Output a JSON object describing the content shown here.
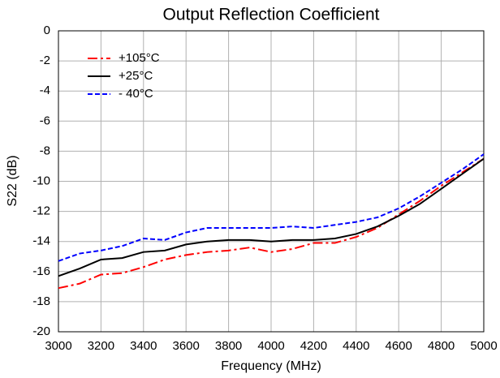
{
  "chart_data": {
    "type": "line",
    "title": "Output Reflection Coefficient",
    "xlabel": "Frequency (MHz)",
    "ylabel": "S22 (dB)",
    "x": [
      3000,
      3100,
      3200,
      3300,
      3400,
      3500,
      3600,
      3700,
      3800,
      3900,
      4000,
      4100,
      4200,
      4300,
      4400,
      4500,
      4600,
      4700,
      4800,
      4900,
      5000
    ],
    "series": [
      {
        "name": "+105°C",
        "color": "#ff0000",
        "dash": "dashdot",
        "values": [
          -17.1,
          -16.8,
          -16.2,
          -16.1,
          -15.7,
          -15.2,
          -14.9,
          -14.7,
          -14.6,
          -14.4,
          -14.7,
          -14.5,
          -14.1,
          -14.1,
          -13.7,
          -13.1,
          -12.2,
          -11.3,
          -10.3,
          -9.4,
          -8.5
        ]
      },
      {
        "name": "+25°C",
        "color": "#000000",
        "dash": "solid",
        "values": [
          -16.3,
          -15.8,
          -15.2,
          -15.1,
          -14.7,
          -14.6,
          -14.2,
          -14.0,
          -13.9,
          -13.9,
          -14.0,
          -13.9,
          -13.9,
          -13.8,
          -13.5,
          -13.0,
          -12.3,
          -11.5,
          -10.5,
          -9.5,
          -8.5
        ]
      },
      {
        "name": "- 40°C",
        "color": "#0000ff",
        "dash": "dash",
        "values": [
          -15.3,
          -14.8,
          -14.6,
          -14.3,
          -13.8,
          -13.9,
          -13.4,
          -13.1,
          -13.1,
          -13.1,
          -13.1,
          -13.0,
          -13.1,
          -12.9,
          -12.7,
          -12.4,
          -11.8,
          -11.0,
          -10.1,
          -9.2,
          -8.2
        ]
      }
    ],
    "xlim": [
      3000,
      5000
    ],
    "xticks": [
      3000,
      3200,
      3400,
      3600,
      3800,
      4000,
      4200,
      4400,
      4600,
      4800,
      5000
    ],
    "ylim": [
      -20,
      0
    ],
    "yticks": [
      -20,
      -18,
      -16,
      -14,
      -12,
      -10,
      -8,
      -6,
      -4,
      -2,
      0
    ],
    "grid": true,
    "legend": "upper left"
  }
}
